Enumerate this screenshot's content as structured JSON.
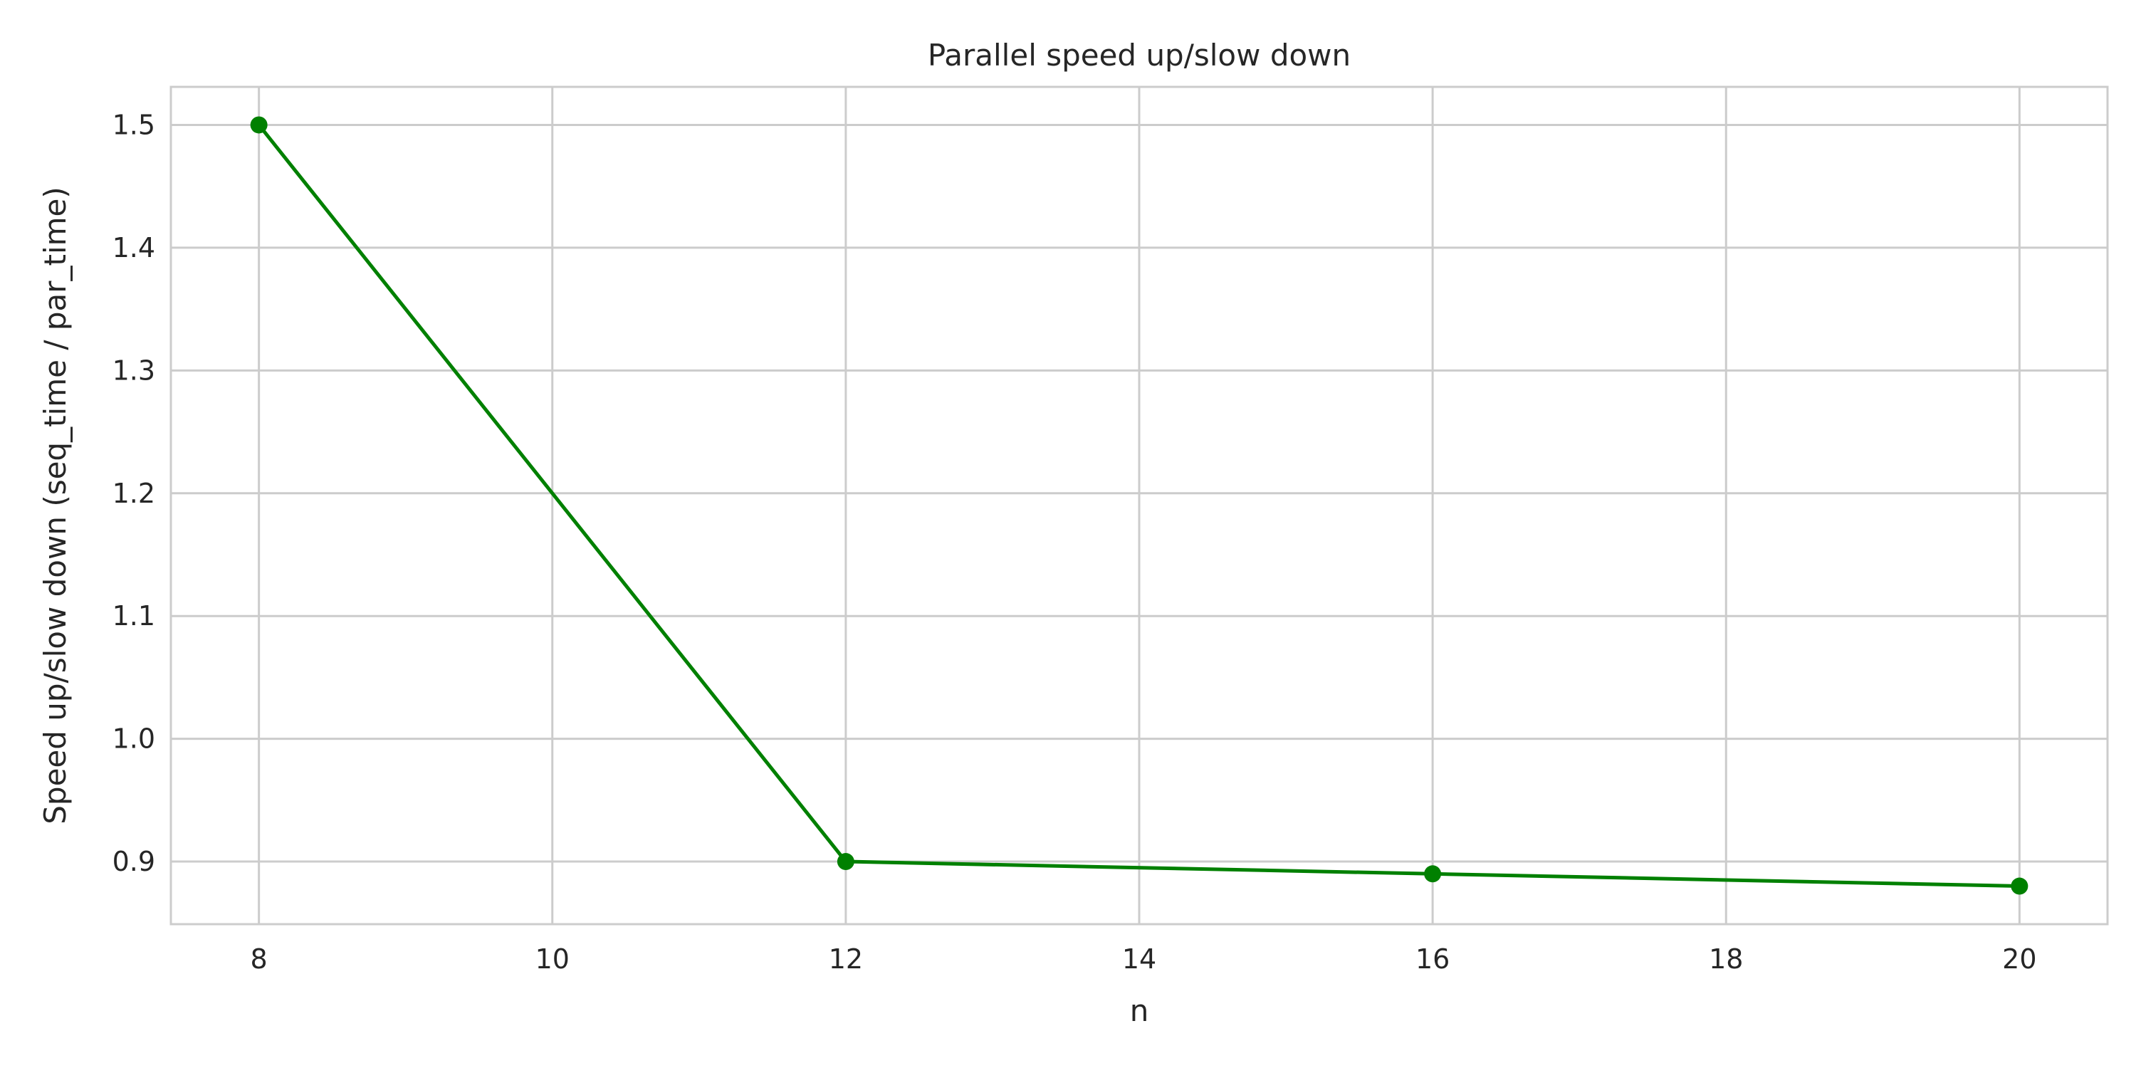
{
  "chart_data": {
    "type": "line",
    "title": "Parallel speed up/slow down",
    "xlabel": "n",
    "ylabel": "Speed up/slow down (seq_time / par_time)",
    "x": [
      8,
      12,
      16,
      20
    ],
    "series": [
      {
        "values": [
          1.5,
          0.9,
          0.89,
          0.88
        ],
        "color": "#008000",
        "marker": "circle"
      }
    ],
    "xlim": [
      7.4,
      20.6
    ],
    "ylim": [
      0.849,
      1.531
    ],
    "xticks": [
      8,
      10,
      12,
      14,
      16,
      18,
      20
    ],
    "yticks": [
      0.9,
      1.0,
      1.1,
      1.2,
      1.3,
      1.4,
      1.5
    ],
    "xtick_labels": [
      "8",
      "10",
      "12",
      "14",
      "16",
      "18",
      "20"
    ],
    "ytick_labels": [
      "0.9",
      "1.0",
      "1.1",
      "1.2",
      "1.3",
      "1.4",
      "1.5"
    ],
    "grid": true,
    "colors": {
      "background": "#ffffff",
      "grid": "#cccccc",
      "axes_edge": "#cccccc",
      "text": "#262626"
    }
  }
}
